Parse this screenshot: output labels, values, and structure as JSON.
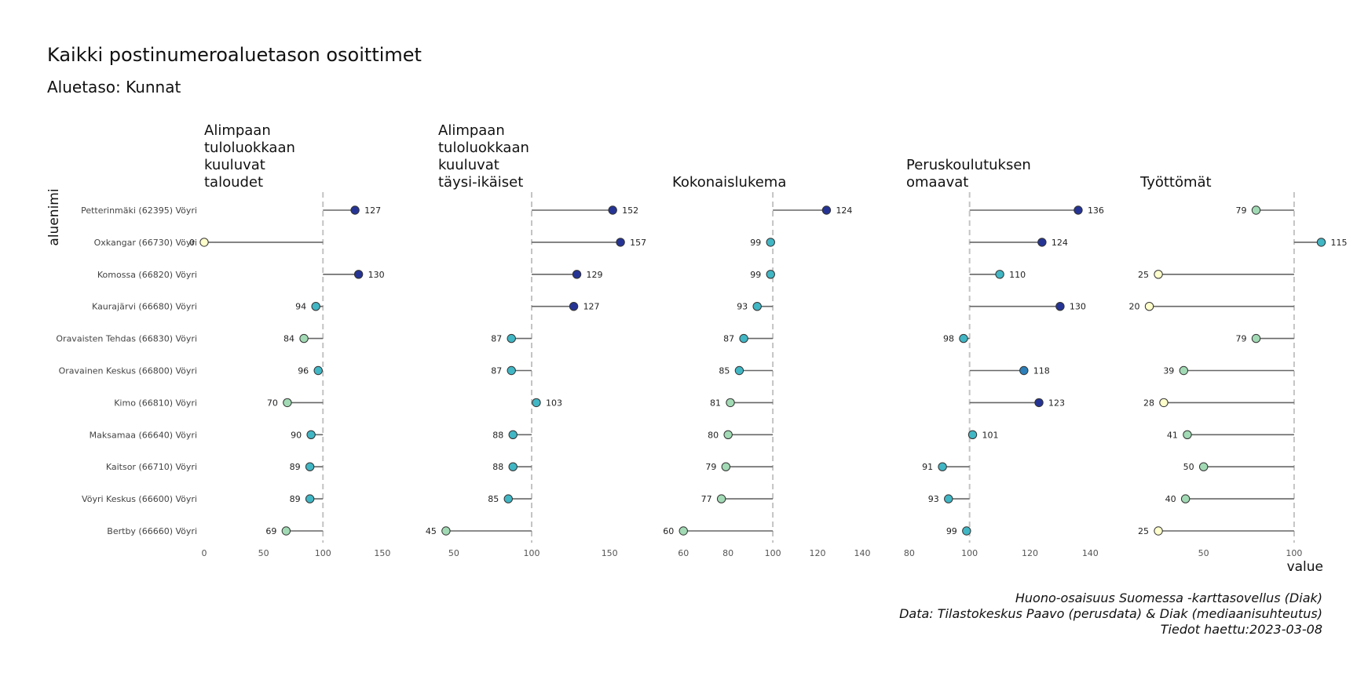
{
  "chart_data": {
    "type": "lollipop",
    "title": "Kaikki postinumeroaluetason osoittimet",
    "subtitle": "Aluetaso: Kunnat",
    "ylabel": "aluenimi",
    "xlabel": "value",
    "reference_value": 100,
    "categories": [
      "Petterinmäki (62395) Vöyri",
      "Oxkangar (66730) Vöyri",
      "Komossa (66820) Vöyri",
      "Kaurajärvi (66680) Vöyri",
      "Oravaisten Tehdas (66830) Vöyri",
      "Oravainen Keskus (66800) Vöyri",
      "Kimo (66810) Vöyri",
      "Maksamaa (66640) Vöyri",
      "Kaitsor (66710) Vöyri",
      "Vöyri Keskus (66600) Vöyri",
      "Bertby (66660) Vöyri"
    ],
    "facets": [
      {
        "title_lines": [
          "Alimpaan",
          "tuloluokkaan",
          "kuuluvat",
          "taloudet"
        ],
        "xlim": [
          0,
          160
        ],
        "ticks": [
          "0",
          "50",
          "100",
          "150"
        ],
        "values": [
          127,
          0,
          130,
          94,
          84,
          96,
          70,
          90,
          89,
          89,
          69
        ]
      },
      {
        "title_lines": [
          "Alimpaan",
          "tuloluokkaan",
          "kuuluvat",
          "täysi-ikäiset"
        ],
        "xlim": [
          40,
          162
        ],
        "ticks": [
          "50",
          "100",
          "150"
        ],
        "values": [
          152,
          157,
          129,
          127,
          87,
          87,
          103,
          88,
          88,
          85,
          45
        ]
      },
      {
        "title_lines": [
          "Kokonaislukema"
        ],
        "xlim": [
          55,
          140
        ],
        "ticks": [
          "60",
          "80",
          "100",
          "120",
          "140"
        ],
        "values": [
          124,
          99,
          99,
          93,
          87,
          85,
          81,
          80,
          79,
          77,
          60
        ]
      },
      {
        "title_lines": [
          "Peruskoulutuksen",
          "omaavat"
        ],
        "xlim": [
          79,
          142
        ],
        "ticks": [
          "80",
          "100",
          "120",
          "140"
        ],
        "values": [
          136,
          124,
          110,
          130,
          98,
          118,
          123,
          101,
          91,
          93,
          99
        ]
      },
      {
        "title_lines": [
          "Työttömät"
        ],
        "xlim": [
          15,
          120
        ],
        "ticks": [
          "50",
          "100"
        ],
        "values": [
          79,
          115,
          25,
          20,
          79,
          39,
          28,
          41,
          50,
          40,
          25
        ]
      }
    ],
    "color_scale": [
      "#ffffcc",
      "#a1dab4",
      "#41b6c4",
      "#2c7fb8",
      "#253494"
    ],
    "grid": false,
    "caption_lines": [
      "Huono-osaisuus Suomessa -karttasovellus (Diak)",
      "Data: Tilastokeskus Paavo (perusdata) & Diak (mediaanisuhteutus)",
      "Tiedot haettu:2023-03-08"
    ]
  }
}
